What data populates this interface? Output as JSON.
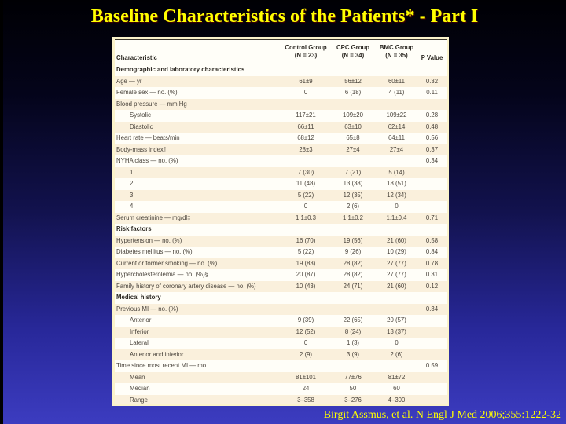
{
  "title": "Baseline Characteristics of the Patients* - Part I",
  "citation": "Birgit Assmus, et al. N Engl J Med 2006;355:1222-32",
  "colors": {
    "accent": "#ffff00",
    "panel_border": "#fbf3cb",
    "band": "#faf0dc",
    "background_top": "#000004",
    "background_bottom": "#3c3cc0"
  },
  "table": {
    "header": {
      "characteristic": "Characteristic",
      "groups": [
        {
          "name": "Control Group",
          "n": "(N = 23)"
        },
        {
          "name": "CPC Group",
          "n": "(N = 34)"
        },
        {
          "name": "BMC Group",
          "n": "(N = 35)"
        }
      ],
      "p_value": "P Value"
    },
    "rows": [
      {
        "label": "Demographic and laboratory characteristics",
        "bold": true,
        "indent": 0,
        "control": "",
        "cpc": "",
        "bmc": "",
        "p": ""
      },
      {
        "label": "Age — yr",
        "indent": 0,
        "control": "61±9",
        "cpc": "56±12",
        "bmc": "60±11",
        "p": "0.32"
      },
      {
        "label": "Female sex — no. (%)",
        "indent": 0,
        "control": "0",
        "cpc": "6 (18)",
        "bmc": "4 (11)",
        "p": "0.11"
      },
      {
        "label": "Blood pressure — mm Hg",
        "indent": 0,
        "control": "",
        "cpc": "",
        "bmc": "",
        "p": ""
      },
      {
        "label": "Systolic",
        "indent": 1,
        "control": "117±21",
        "cpc": "109±20",
        "bmc": "109±22",
        "p": "0.28"
      },
      {
        "label": "Diastolic",
        "indent": 1,
        "control": "66±11",
        "cpc": "63±10",
        "bmc": "62±14",
        "p": "0.48"
      },
      {
        "label": "Heart rate — beats/min",
        "indent": 0,
        "control": "68±12",
        "cpc": "65±8",
        "bmc": "64±11",
        "p": "0.56"
      },
      {
        "label": "Body-mass index†",
        "indent": 0,
        "control": "28±3",
        "cpc": "27±4",
        "bmc": "27±4",
        "p": "0.37"
      },
      {
        "label": "NYHA class — no. (%)",
        "indent": 0,
        "control": "",
        "cpc": "",
        "bmc": "",
        "p": "0.34"
      },
      {
        "label": "1",
        "indent": 1,
        "control": "7 (30)",
        "cpc": "7 (21)",
        "bmc": "5 (14)",
        "p": ""
      },
      {
        "label": "2",
        "indent": 1,
        "control": "11 (48)",
        "cpc": "13 (38)",
        "bmc": "18 (51)",
        "p": ""
      },
      {
        "label": "3",
        "indent": 1,
        "control": "5 (22)",
        "cpc": "12 (35)",
        "bmc": "12 (34)",
        "p": ""
      },
      {
        "label": "4",
        "indent": 1,
        "control": "0",
        "cpc": "2 (6)",
        "bmc": "0",
        "p": ""
      },
      {
        "label": "Serum creatinine — mg/dl‡",
        "indent": 0,
        "control": "1.1±0.3",
        "cpc": "1.1±0.2",
        "bmc": "1.1±0.4",
        "p": "0.71"
      },
      {
        "label": "Risk factors",
        "bold": true,
        "indent": 0,
        "control": "",
        "cpc": "",
        "bmc": "",
        "p": ""
      },
      {
        "label": "Hypertension — no. (%)",
        "indent": 0,
        "control": "16 (70)",
        "cpc": "19 (56)",
        "bmc": "21 (60)",
        "p": "0.58"
      },
      {
        "label": "Diabetes mellitus — no. (%)",
        "indent": 0,
        "control": "5 (22)",
        "cpc": "9 (26)",
        "bmc": "10 (29)",
        "p": "0.84"
      },
      {
        "label": "Current or former smoking — no. (%)",
        "indent": 0,
        "control": "19 (83)",
        "cpc": "28 (82)",
        "bmc": "27 (77)",
        "p": "0.78"
      },
      {
        "label": "Hypercholesterolemia — no. (%)§",
        "indent": 0,
        "control": "20 (87)",
        "cpc": "28 (82)",
        "bmc": "27 (77)",
        "p": "0.31"
      },
      {
        "label": "Family history of coronary artery disease — no. (%)",
        "indent": 0,
        "control": "10 (43)",
        "cpc": "24 (71)",
        "bmc": "21 (60)",
        "p": "0.12"
      },
      {
        "label": "Medical history",
        "bold": true,
        "indent": 0,
        "control": "",
        "cpc": "",
        "bmc": "",
        "p": ""
      },
      {
        "label": "Previous MI — no. (%)",
        "indent": 0,
        "control": "",
        "cpc": "",
        "bmc": "",
        "p": "0.34"
      },
      {
        "label": "Anterior",
        "indent": 1,
        "control": "9 (39)",
        "cpc": "22 (65)",
        "bmc": "20 (57)",
        "p": ""
      },
      {
        "label": "Inferior",
        "indent": 1,
        "control": "12 (52)",
        "cpc": "8 (24)",
        "bmc": "13 (37)",
        "p": ""
      },
      {
        "label": "Lateral",
        "indent": 1,
        "control": "0",
        "cpc": "1 (3)",
        "bmc": "0",
        "p": ""
      },
      {
        "label": "Anterior and inferior",
        "indent": 1,
        "control": "2 (9)",
        "cpc": "3 (9)",
        "bmc": "2 (6)",
        "p": ""
      },
      {
        "label": "Time since most recent MI — mo",
        "indent": 0,
        "control": "",
        "cpc": "",
        "bmc": "",
        "p": "0.59"
      },
      {
        "label": "Mean",
        "indent": 1,
        "control": "81±101",
        "cpc": "77±76",
        "bmc": "81±72",
        "p": ""
      },
      {
        "label": "Median",
        "indent": 1,
        "control": "24",
        "cpc": "50",
        "bmc": "60",
        "p": ""
      },
      {
        "label": "Range",
        "indent": 1,
        "control": "3–358",
        "cpc": "3–276",
        "bmc": "4–300",
        "p": ""
      }
    ]
  }
}
